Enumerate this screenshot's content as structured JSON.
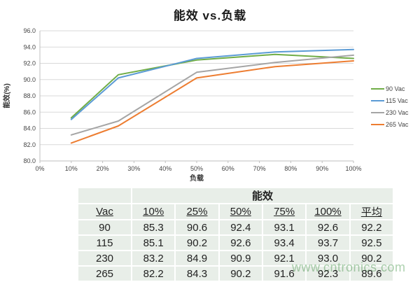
{
  "title": "能效 vs.负载",
  "watermark": "www.cntronics.com",
  "chart_data": {
    "type": "line",
    "title": "能效 vs.负载",
    "xlabel": "负载",
    "ylabel": "能效(%)",
    "x": [
      10,
      25,
      50,
      75,
      100
    ],
    "xticks": [
      "0%",
      "10%",
      "20%",
      "30%",
      "40%",
      "50%",
      "60%",
      "70%",
      "80%",
      "90%",
      "100%"
    ],
    "yticks": [
      "96.0",
      "94.0",
      "92.0",
      "90.0",
      "88.0",
      "86.0",
      "84.0",
      "82.0",
      "80.0"
    ],
    "ylim": [
      80,
      96
    ],
    "xlim_percent": [
      0,
      100
    ],
    "grid": true,
    "legend_position": "right",
    "series": [
      {
        "name": "90 Vac",
        "color": "#70AD47",
        "values": [
          85.3,
          90.6,
          92.4,
          93.1,
          92.6
        ]
      },
      {
        "name": "115 Vac",
        "color": "#5B9BD5",
        "values": [
          85.1,
          90.2,
          92.6,
          93.4,
          93.7
        ]
      },
      {
        "name": "230 Vac",
        "color": "#A5A5A5",
        "values": [
          83.2,
          84.9,
          90.9,
          92.1,
          93.0
        ]
      },
      {
        "name": "265 Vac",
        "color": "#ED7D31",
        "values": [
          82.2,
          84.3,
          90.2,
          91.6,
          92.3
        ]
      }
    ]
  },
  "table": {
    "group_header": "能效",
    "columns": [
      "Vac",
      "10%",
      "25%",
      "50%",
      "75%",
      "100%",
      "平均"
    ],
    "rows": [
      [
        "90",
        "85.3",
        "90.6",
        "92.4",
        "93.1",
        "92.6",
        "92.2"
      ],
      [
        "115",
        "85.1",
        "90.2",
        "92.6",
        "93.4",
        "93.7",
        "92.5"
      ],
      [
        "230",
        "83.2",
        "84.9",
        "90.9",
        "92.1",
        "93.0",
        "90.2"
      ],
      [
        "265",
        "82.2",
        "84.3",
        "90.2",
        "91.6",
        "92.3",
        "89.6"
      ]
    ]
  },
  "colors": {
    "grid": "#d9d9d9",
    "axis": "#bfbfbf",
    "table_cell_bg": "#e8eee8"
  }
}
